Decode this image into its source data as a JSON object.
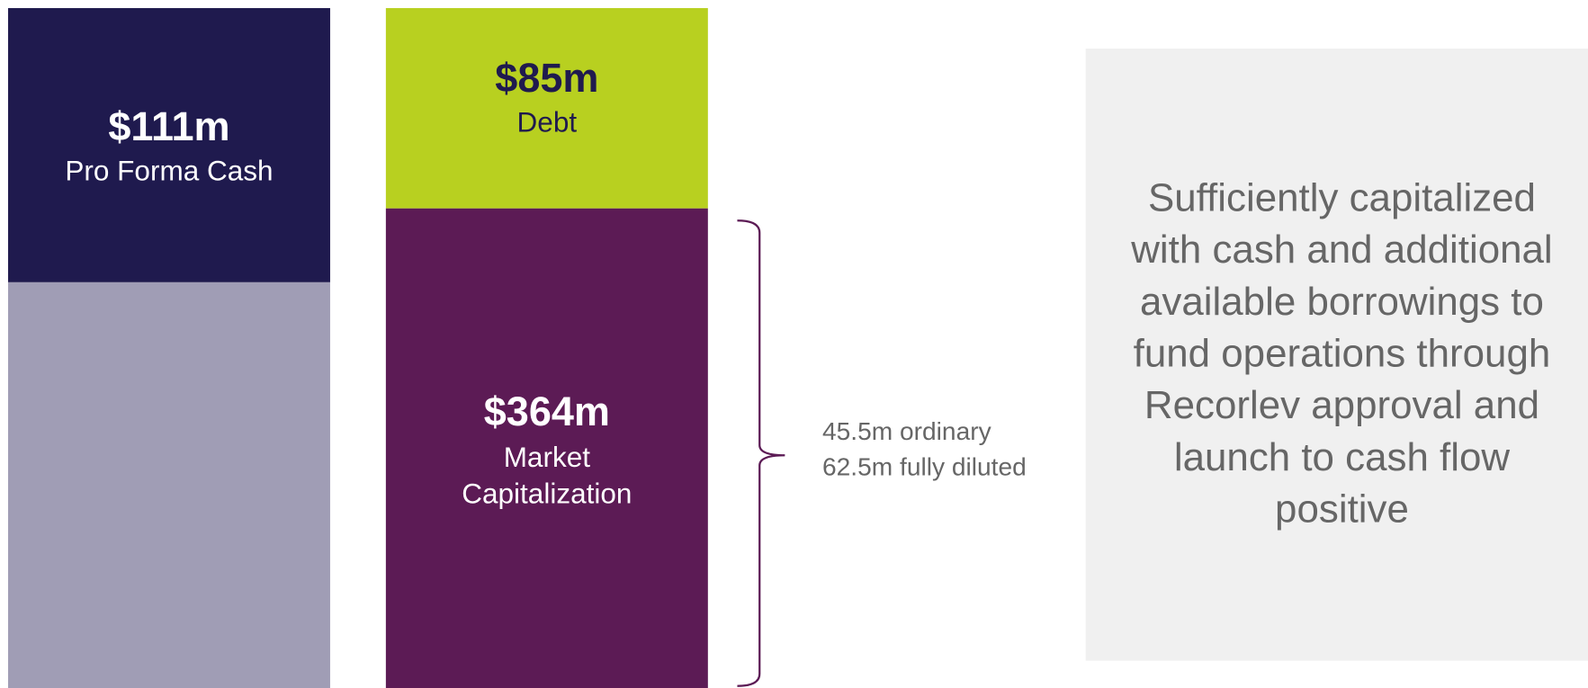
{
  "cash": {
    "amount": "$111m",
    "label": "Pro Forma Cash"
  },
  "debt": {
    "amount": "$85m",
    "label": "Debt"
  },
  "market_cap": {
    "amount": "$364m",
    "label_lines": [
      "Market",
      "Capitalization"
    ]
  },
  "shares": [
    "45.5m ordinary",
    "62.5m fully diluted"
  ],
  "note": [
    "Sufficiently capitalized",
    "with cash and additional",
    "available borrowings to",
    "fund operations through",
    "Recorlev approval and",
    "launch to cash flow",
    "positive"
  ]
}
